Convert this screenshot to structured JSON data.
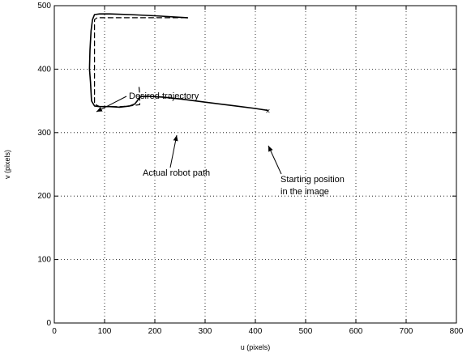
{
  "chart_data": {
    "type": "line",
    "xlabel": "u (pixels)",
    "ylabel": "v (pixels)",
    "xlim": [
      0,
      800
    ],
    "ylim": [
      0,
      500
    ],
    "xticks": [
      0,
      100,
      200,
      300,
      400,
      500,
      600,
      700,
      800
    ],
    "yticks": [
      0,
      100,
      200,
      300,
      400,
      500
    ],
    "grid": true,
    "series": [
      {
        "style": "dashed",
        "x": [
          262,
          250,
          200,
          150,
          110,
          85,
          80,
          80,
          80,
          80,
          90,
          130,
          150,
          170,
          170,
          168
        ],
        "y": [
          481,
          481,
          481,
          481,
          481,
          481,
          478,
          450,
          400,
          345,
          341,
          341,
          342,
          344,
          360,
          375
        ]
      },
      {
        "style": "solid",
        "x": [
          425,
          400,
          350,
          300,
          250,
          215,
          190,
          175,
          170,
          165,
          160,
          150,
          130,
          110,
          90,
          80,
          74,
          72,
          70,
          71,
          73,
          76,
          80,
          90,
          110,
          150,
          200,
          265
        ],
        "y": [
          335,
          338,
          343,
          348,
          353,
          356,
          357,
          357,
          356,
          350,
          345,
          342,
          340,
          341,
          341,
          342,
          350,
          380,
          400,
          430,
          460,
          478,
          486,
          487,
          487,
          486,
          484,
          481
        ]
      }
    ],
    "annotations": [
      {
        "text": "Desired trajectory",
        "x": 78,
        "y": 410
      },
      {
        "text": "Actual robot path",
        "x": 215,
        "y": 357
      },
      {
        "text": "Starting position",
        "x": 425,
        "y": 335
      },
      {
        "text": "in the image",
        "x": 425,
        "y": 335
      }
    ]
  }
}
